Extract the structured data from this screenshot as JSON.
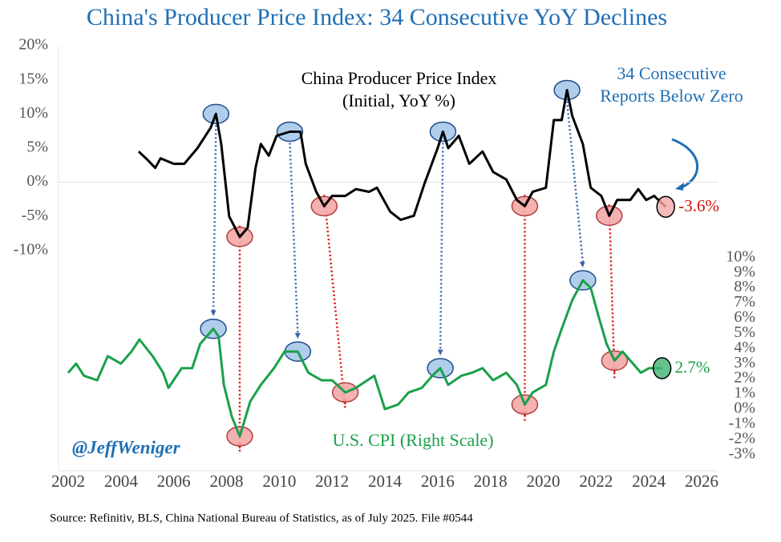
{
  "chart_data": {
    "type": "line",
    "title": "China's Producer Price Index: 34 Consecutive YoY Declines",
    "annotation": "34 Consecutive Reports Below Zero",
    "credit": "@JeffWeniger",
    "source": "Source: Refinitiv, BLS, China National Bureau of Statistics, as of July 2025. File #0544",
    "xlim": [
      2002,
      2026
    ],
    "xticks": [
      2002,
      2004,
      2006,
      2008,
      2010,
      2012,
      2014,
      2016,
      2018,
      2020,
      2022,
      2024,
      2026
    ],
    "ylim": [
      -41.3,
      20
    ],
    "yticks": [
      {
        "value": -10,
        "label": "-10%"
      },
      {
        "value": -5,
        "label": "-5%"
      },
      {
        "value": 0,
        "label": "0%"
      },
      {
        "value": 5,
        "label": "5%"
      },
      {
        "value": 10,
        "label": "10%"
      },
      {
        "value": 15,
        "label": "15%"
      },
      {
        "value": 20,
        "label": "20%"
      }
    ],
    "y2lim": [
      -3.65,
      24
    ],
    "y2ticks": [
      {
        "value": -3,
        "label": "-3%"
      },
      {
        "value": -2,
        "label": "-2%"
      },
      {
        "value": -1,
        "label": "-1%"
      },
      {
        "value": 0,
        "label": "0%"
      },
      {
        "value": 1,
        "label": "1%"
      },
      {
        "value": 2,
        "label": "2%"
      },
      {
        "value": 3,
        "label": "3%"
      },
      {
        "value": 4,
        "label": "4%"
      },
      {
        "value": 5,
        "label": "5%"
      },
      {
        "value": 6,
        "label": "6%"
      },
      {
        "value": 7,
        "label": "7%"
      },
      {
        "value": 8,
        "label": "8%"
      },
      {
        "value": 9,
        "label": "9%"
      },
      {
        "value": 10,
        "label": "10%"
      }
    ],
    "zero_line": true,
    "series": [
      {
        "name": "China Producer Price Index (Initial, YoY %)",
        "color": "#000000",
        "axis": "y",
        "x": [
          2004.67,
          2005.0,
          2005.3,
          2005.5,
          2006.0,
          2006.4,
          2006.9,
          2007.4,
          2007.6,
          2007.8,
          2008.1,
          2008.5,
          2008.8,
          2009.1,
          2009.3,
          2009.6,
          2009.9,
          2010.4,
          2010.8,
          2011.0,
          2011.4,
          2011.7,
          2012.0,
          2012.5,
          2012.9,
          2013.4,
          2013.7,
          2014.2,
          2014.6,
          2015.1,
          2015.5,
          2016.0,
          2016.2,
          2016.4,
          2016.8,
          2017.2,
          2017.7,
          2018.1,
          2018.6,
          2019.0,
          2019.3,
          2019.6,
          2020.1,
          2020.4,
          2020.7,
          2020.9,
          2021.1,
          2021.5,
          2021.8,
          2022.2,
          2022.5,
          2022.8,
          2023.3,
          2023.6,
          2023.9,
          2024.2,
          2024.64
        ],
        "values": [
          4.5,
          3.3,
          2.1,
          3.5,
          2.7,
          2.7,
          5,
          8,
          10,
          5.6,
          -5,
          -8,
          -6.7,
          2.1,
          5.6,
          3.9,
          6.8,
          7.4,
          7.4,
          2.7,
          -1.4,
          -3.5,
          -2,
          -2,
          -1,
          -1.4,
          -0.8,
          -4.3,
          -5.5,
          -4.9,
          -0.2,
          5,
          7.4,
          5,
          6.8,
          2.7,
          4.5,
          1.5,
          0.4,
          -2.6,
          -3.5,
          -1.4,
          -0.8,
          9.1,
          9.1,
          13.5,
          9.7,
          5.6,
          -0.8,
          -2,
          -4.9,
          -2.6,
          -2.6,
          -1,
          -2.6,
          -2,
          -3.6
        ],
        "value_labels": [
          null,
          null,
          null,
          null,
          null,
          null,
          null,
          null,
          null,
          null,
          null,
          null,
          null,
          null,
          null,
          null,
          null,
          null,
          null,
          null,
          null,
          null,
          null,
          null,
          null,
          null,
          null,
          null,
          null,
          null,
          null,
          null,
          null,
          null,
          null,
          null,
          null,
          null,
          null,
          null,
          null,
          null,
          null,
          null,
          null,
          null,
          null,
          null,
          null,
          null,
          null,
          null,
          null,
          null,
          null,
          null,
          "-3.6%"
        ]
      },
      {
        "name": "U.S. CPI (Right Scale)",
        "color": "#1aa04a",
        "axis": "y2",
        "x": [
          2002.0,
          2002.3,
          2002.6,
          2003.1,
          2003.5,
          2004.0,
          2004.4,
          2004.7,
          2005.2,
          2005.6,
          2005.8,
          2006.3,
          2006.7,
          2007.0,
          2007.5,
          2007.7,
          2007.9,
          2008.2,
          2008.5,
          2008.9,
          2009.3,
          2009.8,
          2010.2,
          2010.7,
          2011.1,
          2011.6,
          2012.0,
          2012.5,
          2012.9,
          2013.6,
          2014.0,
          2014.5,
          2014.9,
          2015.4,
          2015.8,
          2016.1,
          2016.4,
          2016.9,
          2017.3,
          2017.7,
          2018.1,
          2018.6,
          2019.0,
          2019.3,
          2019.6,
          2020.1,
          2020.4,
          2020.7,
          2021.1,
          2021.5,
          2021.8,
          2022.1,
          2022.4,
          2022.7,
          2023.0,
          2023.3,
          2023.7,
          2024.0,
          2024.5
        ],
        "values": [
          2.4,
          3.0,
          2.2,
          1.9,
          3.5,
          3.0,
          3.8,
          4.6,
          3.5,
          2.4,
          1.4,
          2.7,
          2.7,
          4.3,
          5.3,
          4.8,
          1.6,
          -0.5,
          -1.8,
          0.5,
          1.6,
          2.7,
          3.8,
          3.8,
          2.4,
          1.9,
          1.9,
          1.1,
          1.4,
          2.2,
          0,
          0.3,
          1.1,
          1.4,
          2.2,
          2.7,
          1.6,
          2.2,
          2.4,
          2.7,
          1.9,
          2.4,
          1.6,
          0.3,
          1.1,
          1.6,
          3.8,
          5.3,
          7.2,
          8.5,
          8.0,
          6.1,
          4.3,
          3.2,
          3.8,
          3.2,
          2.4,
          2.7,
          2.7
        ],
        "value_labels": [
          null,
          null,
          null,
          null,
          null,
          null,
          null,
          null,
          null,
          null,
          null,
          null,
          null,
          null,
          null,
          null,
          null,
          null,
          null,
          null,
          null,
          null,
          null,
          null,
          null,
          null,
          null,
          null,
          null,
          null,
          null,
          null,
          null,
          null,
          null,
          null,
          null,
          null,
          null,
          null,
          null,
          null,
          null,
          null,
          null,
          null,
          null,
          null,
          null,
          null,
          null,
          null,
          null,
          null,
          null,
          null,
          null,
          null,
          "2.7%"
        ]
      }
    ]
  }
}
